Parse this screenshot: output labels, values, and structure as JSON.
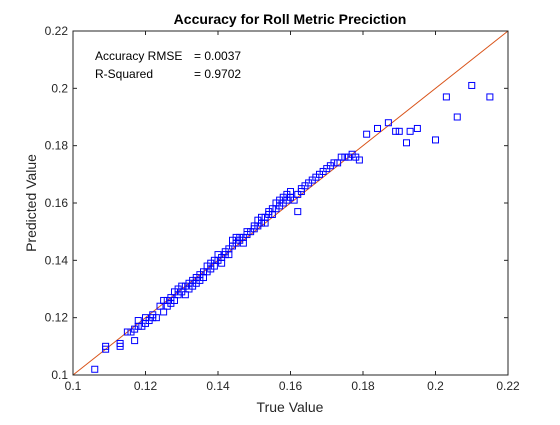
{
  "chart_data": {
    "type": "scatter",
    "title": "Accuracy for Roll Metric Preciction",
    "xlabel": "True Value",
    "ylabel": "Predicted Value",
    "xlim": [
      0.1,
      0.22
    ],
    "ylim": [
      0.1,
      0.22
    ],
    "xticks": [
      "0.1",
      "0.12",
      "0.14",
      "0.16",
      "0.18",
      "0.2",
      "0.22"
    ],
    "yticks": [
      "0.1",
      "0.12",
      "0.14",
      "0.16",
      "0.18",
      "0.2",
      "0.22"
    ],
    "grid": false,
    "annotations": {
      "rmse_label": "Accuracy RMSE",
      "rmse_value": "= 0.0037",
      "r2_label": "R-Squared",
      "r2_value": "= 0.9702"
    },
    "reference_line": {
      "x": [
        0.1,
        0.22
      ],
      "y": [
        0.1,
        0.22
      ],
      "color": "#d95319"
    },
    "marker_color": "#0000ff",
    "series": [
      {
        "points": [
          [
            0.106,
            0.102
          ],
          [
            0.109,
            0.11
          ],
          [
            0.109,
            0.109
          ],
          [
            0.113,
            0.11
          ],
          [
            0.113,
            0.111
          ],
          [
            0.115,
            0.115
          ],
          [
            0.116,
            0.115
          ],
          [
            0.117,
            0.116
          ],
          [
            0.117,
            0.112
          ],
          [
            0.118,
            0.117
          ],
          [
            0.118,
            0.119
          ],
          [
            0.119,
            0.117
          ],
          [
            0.12,
            0.12
          ],
          [
            0.12,
            0.118
          ],
          [
            0.121,
            0.119
          ],
          [
            0.122,
            0.121
          ],
          [
            0.122,
            0.12
          ],
          [
            0.123,
            0.12
          ],
          [
            0.124,
            0.124
          ],
          [
            0.125,
            0.126
          ],
          [
            0.125,
            0.122
          ],
          [
            0.126,
            0.126
          ],
          [
            0.126,
            0.124
          ],
          [
            0.127,
            0.125
          ],
          [
            0.127,
            0.127
          ],
          [
            0.128,
            0.126
          ],
          [
            0.128,
            0.129
          ],
          [
            0.129,
            0.128
          ],
          [
            0.129,
            0.13
          ],
          [
            0.13,
            0.129
          ],
          [
            0.13,
            0.131
          ],
          [
            0.131,
            0.131
          ],
          [
            0.131,
            0.128
          ],
          [
            0.132,
            0.132
          ],
          [
            0.132,
            0.13
          ],
          [
            0.133,
            0.133
          ],
          [
            0.133,
            0.131
          ],
          [
            0.134,
            0.134
          ],
          [
            0.134,
            0.132
          ],
          [
            0.135,
            0.135
          ],
          [
            0.135,
            0.133
          ],
          [
            0.136,
            0.134
          ],
          [
            0.136,
            0.136
          ],
          [
            0.137,
            0.136
          ],
          [
            0.137,
            0.138
          ],
          [
            0.138,
            0.137
          ],
          [
            0.138,
            0.139
          ],
          [
            0.139,
            0.138
          ],
          [
            0.139,
            0.14
          ],
          [
            0.14,
            0.14
          ],
          [
            0.14,
            0.142
          ],
          [
            0.141,
            0.141
          ],
          [
            0.141,
            0.139
          ],
          [
            0.142,
            0.142
          ],
          [
            0.142,
            0.143
          ],
          [
            0.143,
            0.144
          ],
          [
            0.143,
            0.142
          ],
          [
            0.144,
            0.145
          ],
          [
            0.144,
            0.147
          ],
          [
            0.145,
            0.146
          ],
          [
            0.145,
            0.148
          ],
          [
            0.146,
            0.148
          ],
          [
            0.146,
            0.147
          ],
          [
            0.147,
            0.146
          ],
          [
            0.147,
            0.148
          ],
          [
            0.148,
            0.149
          ],
          [
            0.148,
            0.15
          ],
          [
            0.149,
            0.15
          ],
          [
            0.15,
            0.151
          ],
          [
            0.15,
            0.152
          ],
          [
            0.151,
            0.152
          ],
          [
            0.151,
            0.154
          ],
          [
            0.152,
            0.153
          ],
          [
            0.152,
            0.155
          ],
          [
            0.153,
            0.155
          ],
          [
            0.153,
            0.153
          ],
          [
            0.154,
            0.156
          ],
          [
            0.154,
            0.157
          ],
          [
            0.155,
            0.156
          ],
          [
            0.155,
            0.158
          ],
          [
            0.156,
            0.158
          ],
          [
            0.156,
            0.16
          ],
          [
            0.157,
            0.159
          ],
          [
            0.157,
            0.161
          ],
          [
            0.158,
            0.16
          ],
          [
            0.158,
            0.162
          ],
          [
            0.159,
            0.161
          ],
          [
            0.159,
            0.163
          ],
          [
            0.16,
            0.162
          ],
          [
            0.16,
            0.164
          ],
          [
            0.161,
            0.161
          ],
          [
            0.162,
            0.163
          ],
          [
            0.162,
            0.157
          ],
          [
            0.163,
            0.165
          ],
          [
            0.163,
            0.164
          ],
          [
            0.164,
            0.166
          ],
          [
            0.165,
            0.167
          ],
          [
            0.166,
            0.168
          ],
          [
            0.167,
            0.169
          ],
          [
            0.168,
            0.17
          ],
          [
            0.169,
            0.171
          ],
          [
            0.17,
            0.172
          ],
          [
            0.171,
            0.173
          ],
          [
            0.172,
            0.174
          ],
          [
            0.173,
            0.174
          ],
          [
            0.174,
            0.176
          ],
          [
            0.175,
            0.176
          ],
          [
            0.176,
            0.176
          ],
          [
            0.177,
            0.177
          ],
          [
            0.178,
            0.176
          ],
          [
            0.179,
            0.175
          ],
          [
            0.181,
            0.184
          ],
          [
            0.184,
            0.186
          ],
          [
            0.187,
            0.188
          ],
          [
            0.189,
            0.185
          ],
          [
            0.19,
            0.185
          ],
          [
            0.192,
            0.181
          ],
          [
            0.193,
            0.185
          ],
          [
            0.195,
            0.186
          ],
          [
            0.2,
            0.182
          ],
          [
            0.203,
            0.197
          ],
          [
            0.206,
            0.19
          ],
          [
            0.21,
            0.201
          ],
          [
            0.215,
            0.197
          ]
        ]
      }
    ]
  }
}
